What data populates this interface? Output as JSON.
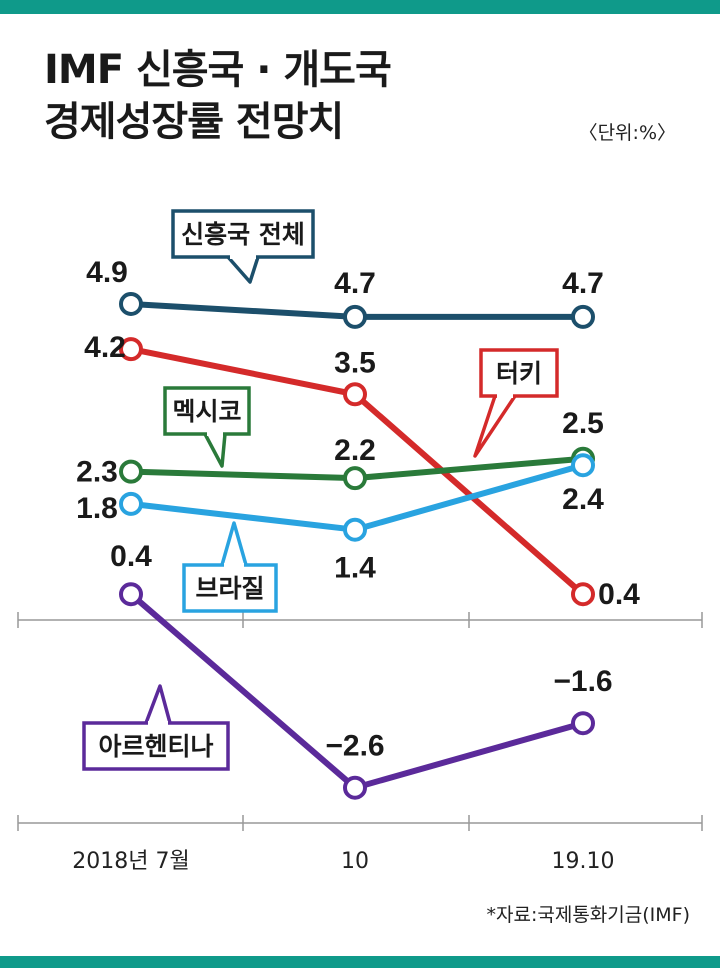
{
  "title_line1": "IMF 신흥국 · 개도국",
  "title_line2": "경제성장률 전망치",
  "unit": "〈단위:%〉",
  "source": "*자료:국제통화기금(IMF)",
  "chart_data": {
    "type": "line",
    "title": "IMF 신흥국 · 개도국 경제성장률 전망치",
    "unit": "%",
    "categories": [
      "2018년 7월",
      "10",
      "19.10"
    ],
    "ylim": [
      -3,
      5.2
    ],
    "series": [
      {
        "name": "신흥국 전체",
        "color": "#1c4f6b",
        "values": [
          4.9,
          4.7,
          4.7
        ],
        "labels": [
          "4.9",
          "4.7",
          "4.7"
        ]
      },
      {
        "name": "터키",
        "color": "#d42a2a",
        "values": [
          4.2,
          3.5,
          0.4
        ],
        "labels": [
          "4.2",
          "3.5",
          "0.4"
        ]
      },
      {
        "name": "멕시코",
        "color": "#2a7a3a",
        "values": [
          2.3,
          2.2,
          2.5
        ],
        "labels": [
          "2.3",
          "2.2",
          "2.5"
        ]
      },
      {
        "name": "브라질",
        "color": "#29a3e0",
        "values": [
          1.8,
          1.4,
          2.4
        ],
        "labels": [
          "1.8",
          "1.4",
          "2.4"
        ]
      },
      {
        "name": "아르헨티나",
        "color": "#5b2a9a",
        "values": [
          0.4,
          -2.6,
          -1.6
        ],
        "labels": [
          "0.4",
          "−2.6",
          "−1.6"
        ]
      }
    ]
  }
}
